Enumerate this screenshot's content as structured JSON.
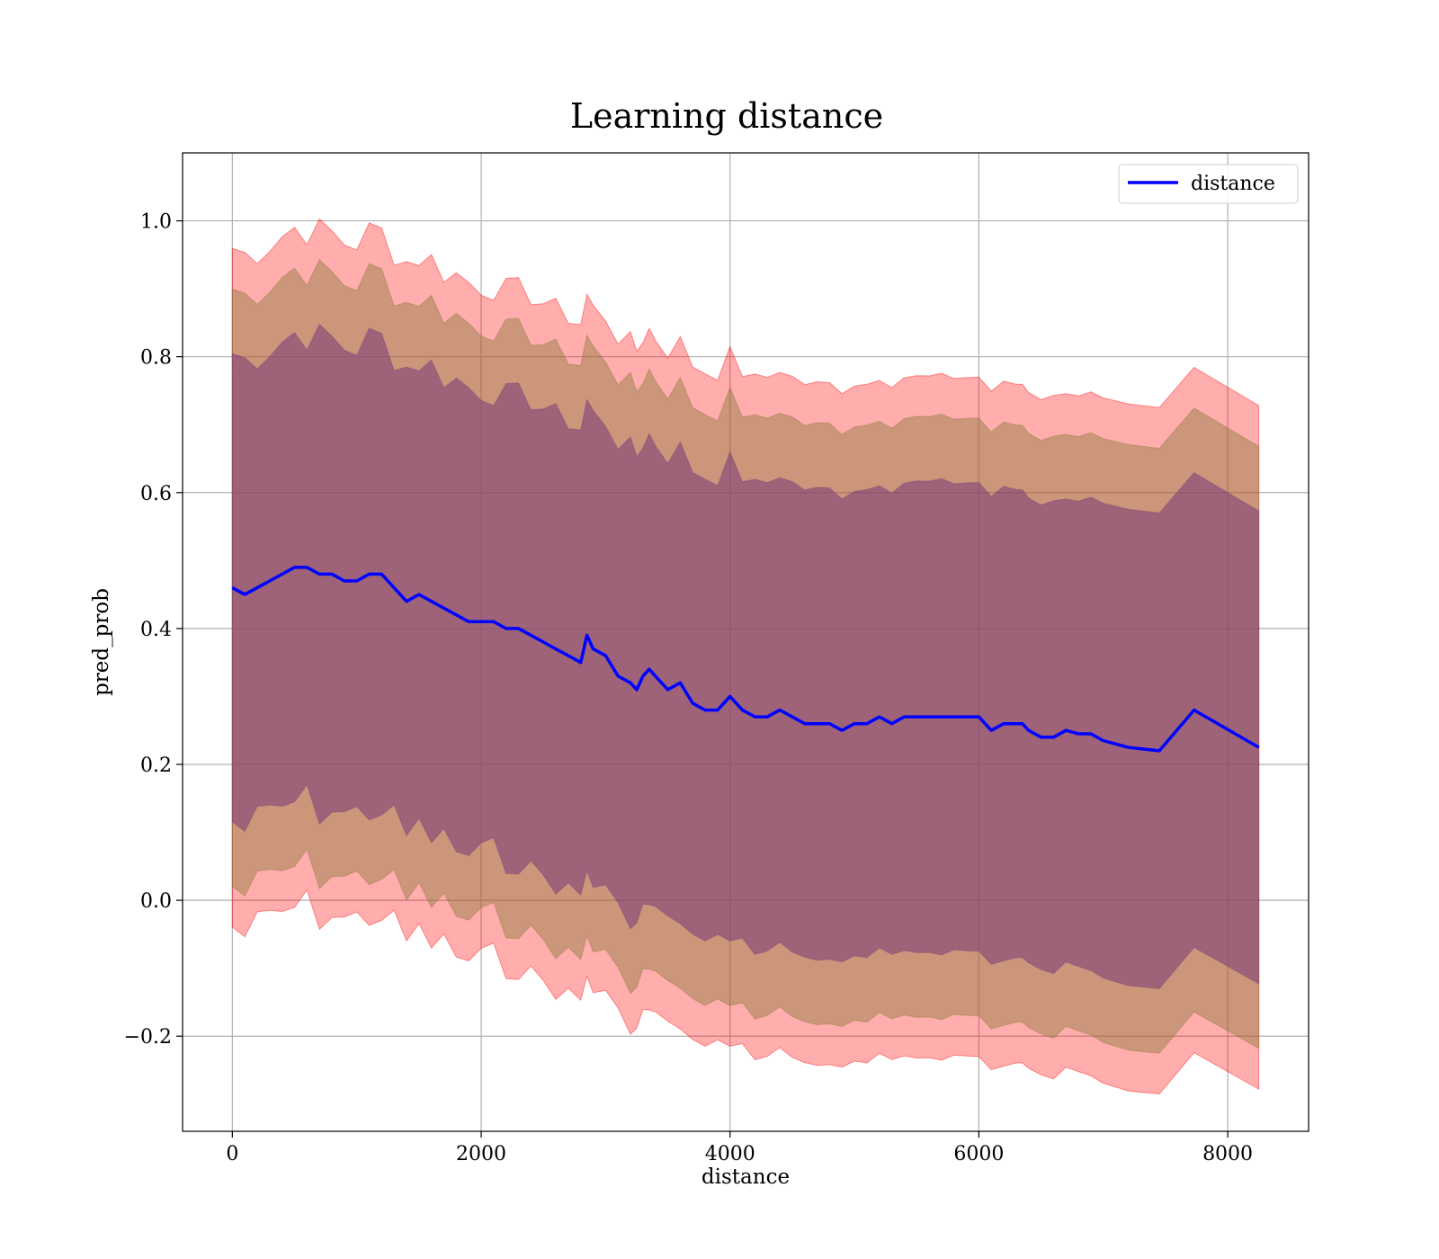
{
  "chart_data": {
    "type": "line",
    "title": "Learning distance",
    "xlabel": "distance",
    "ylabel": "pred_prob",
    "xlim": [
      -400,
      8650
    ],
    "ylim": [
      -0.34,
      1.1
    ],
    "xticks": [
      0,
      2000,
      4000,
      6000,
      8000
    ],
    "xtick_labels": [
      "0",
      "2000",
      "4000",
      "6000",
      "8000"
    ],
    "yticks": [
      -0.2,
      0.0,
      0.2,
      0.4,
      0.6,
      0.8,
      1.0
    ],
    "ytick_labels": [
      "−0.2",
      "0.0",
      "0.2",
      "0.4",
      "0.6",
      "0.8",
      "1.0"
    ],
    "grid": true,
    "legend": {
      "position": "top-right",
      "entries": [
        "distance"
      ]
    },
    "colors": {
      "line": "#0000ff",
      "band_outer": "#ff0000",
      "band_middle": "#8b7a3a",
      "band_inner": "#7a3a7a",
      "grid": "#b0b0b0"
    },
    "series": [
      {
        "name": "distance",
        "x": [
          0,
          100,
          200,
          300,
          400,
          500,
          600,
          700,
          800,
          900,
          1000,
          1100,
          1200,
          1300,
          1400,
          1500,
          1600,
          1700,
          1800,
          1900,
          2000,
          2100,
          2200,
          2300,
          2400,
          2500,
          2600,
          2700,
          2800,
          2850,
          2900,
          3000,
          3100,
          3200,
          3250,
          3300,
          3350,
          3400,
          3500,
          3600,
          3700,
          3800,
          3900,
          4000,
          4100,
          4200,
          4300,
          4400,
          4500,
          4600,
          4700,
          4800,
          4900,
          5000,
          5100,
          5200,
          5300,
          5400,
          5500,
          5600,
          5700,
          5800,
          5900,
          6000,
          6100,
          6200,
          6300,
          6350,
          6400,
          6500,
          6600,
          6700,
          6800,
          6900,
          7000,
          7200,
          7450,
          7730,
          8250
        ],
        "y": [
          0.46,
          0.45,
          0.46,
          0.47,
          0.48,
          0.49,
          0.49,
          0.48,
          0.48,
          0.47,
          0.47,
          0.48,
          0.48,
          0.46,
          0.44,
          0.45,
          0.44,
          0.43,
          0.42,
          0.41,
          0.41,
          0.41,
          0.4,
          0.4,
          0.39,
          0.38,
          0.37,
          0.36,
          0.35,
          0.39,
          0.37,
          0.36,
          0.33,
          0.32,
          0.31,
          0.33,
          0.34,
          0.33,
          0.31,
          0.32,
          0.29,
          0.28,
          0.28,
          0.3,
          0.28,
          0.27,
          0.27,
          0.28,
          0.27,
          0.26,
          0.26,
          0.26,
          0.25,
          0.26,
          0.26,
          0.27,
          0.26,
          0.27,
          0.27,
          0.27,
          0.27,
          0.27,
          0.27,
          0.27,
          0.25,
          0.26,
          0.26,
          0.26,
          0.25,
          0.24,
          0.24,
          0.25,
          0.245,
          0.245,
          0.235,
          0.225,
          0.22,
          0.28,
          0.225
        ]
      }
    ],
    "bands": [
      {
        "name": "outer",
        "half_width": 0.5
      },
      {
        "name": "middle",
        "half_width": 0.44
      },
      {
        "name": "inner",
        "half_width": 0.345
      }
    ]
  }
}
